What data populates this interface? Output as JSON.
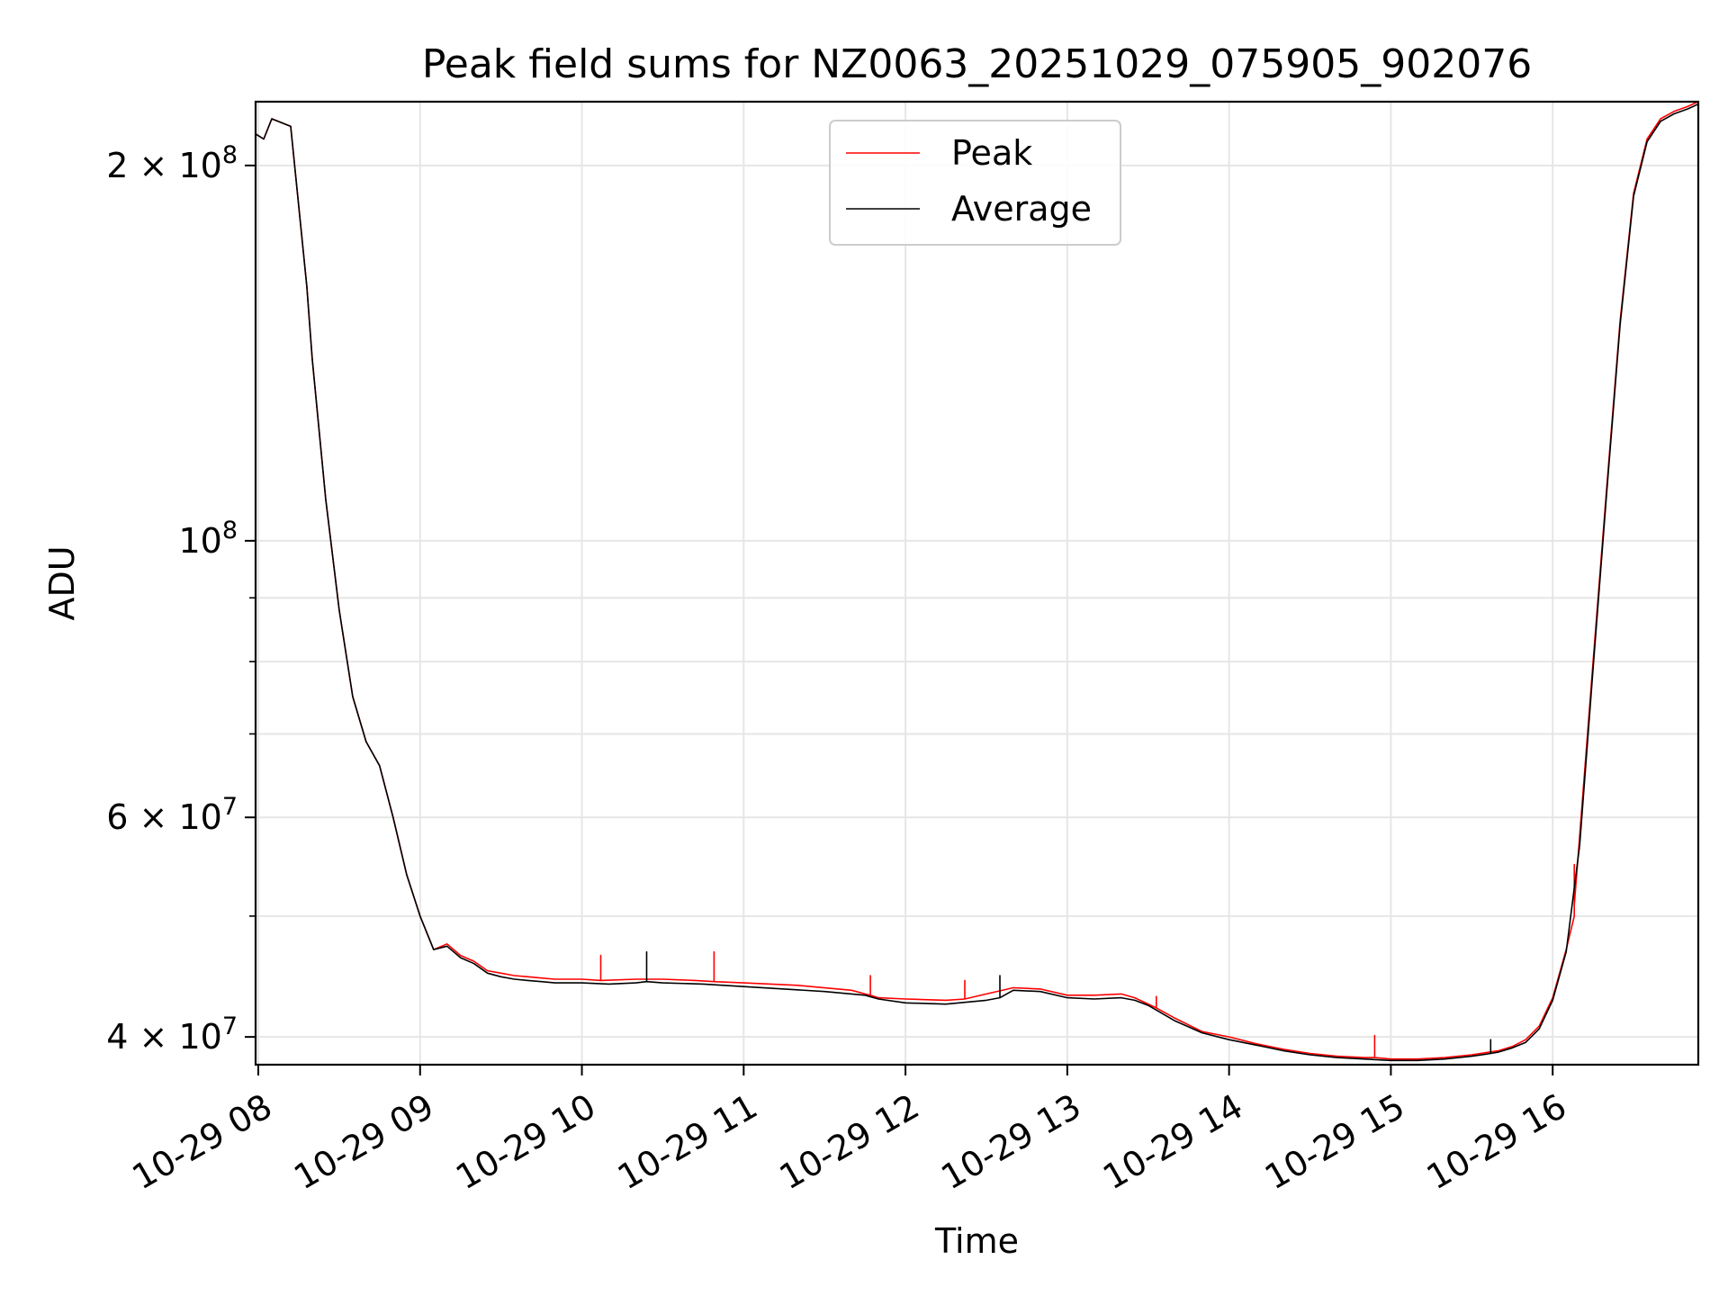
{
  "chart_data": {
    "type": "line",
    "title": "Peak field sums for NZ0063_20251029_075905_902076",
    "xlabel": "Time",
    "ylabel": "ADU",
    "y_scale": "log",
    "grid": true,
    "legend_position": "upper center",
    "xlim": [
      "2025-10-29 07:59",
      "2025-10-29 16:54"
    ],
    "ylim": [
      38000000,
      225000000
    ],
    "x_ticks": [
      {
        "value": "2025-10-29 08:00",
        "label": "10-29 08"
      },
      {
        "value": "2025-10-29 09:00",
        "label": "10-29 09"
      },
      {
        "value": "2025-10-29 10:00",
        "label": "10-29 10"
      },
      {
        "value": "2025-10-29 11:00",
        "label": "10-29 11"
      },
      {
        "value": "2025-10-29 12:00",
        "label": "10-29 12"
      },
      {
        "value": "2025-10-29 13:00",
        "label": "10-29 13"
      },
      {
        "value": "2025-10-29 14:00",
        "label": "10-29 14"
      },
      {
        "value": "2025-10-29 15:00",
        "label": "10-29 15"
      },
      {
        "value": "2025-10-29 16:00",
        "label": "10-29 16"
      }
    ],
    "y_major_ticks": [
      {
        "value": 40000000,
        "mantissa": "4",
        "exponent": "7"
      },
      {
        "value": 60000000,
        "mantissa": "6",
        "exponent": "7"
      },
      {
        "value": 100000000,
        "mantissa": "",
        "exponent": "8"
      },
      {
        "value": 200000000,
        "mantissa": "2",
        "exponent": "8"
      }
    ],
    "y_minor_grid": [
      50000000,
      70000000,
      80000000,
      90000000
    ],
    "series": [
      {
        "name": "Peak",
        "color": "#ff0000",
        "x": [
          "2025-10-29 07:59",
          "2025-10-29 08:02",
          "2025-10-29 08:05",
          "2025-10-29 08:12",
          "2025-10-29 08:18",
          "2025-10-29 08:20",
          "2025-10-29 08:25",
          "2025-10-29 08:30",
          "2025-10-29 08:35",
          "2025-10-29 08:40",
          "2025-10-29 08:45",
          "2025-10-29 08:50",
          "2025-10-29 08:55",
          "2025-10-29 09:00",
          "2025-10-29 09:05",
          "2025-10-29 09:10",
          "2025-10-29 09:15",
          "2025-10-29 09:20",
          "2025-10-29 09:25",
          "2025-10-29 09:30",
          "2025-10-29 09:35",
          "2025-10-29 09:40",
          "2025-10-29 09:45",
          "2025-10-29 09:50",
          "2025-10-29 10:00",
          "2025-10-29 10:07",
          "2025-10-29 10:07",
          "2025-10-29 10:07",
          "2025-10-29 10:20",
          "2025-10-29 10:30",
          "2025-10-29 10:42",
          "2025-10-29 10:49",
          "2025-10-29 10:49",
          "2025-10-29 10:49",
          "2025-10-29 11:00",
          "2025-10-29 11:20",
          "2025-10-29 11:40",
          "2025-10-29 11:45",
          "2025-10-29 11:47",
          "2025-10-29 11:47",
          "2025-10-29 11:47",
          "2025-10-29 11:50",
          "2025-10-29 12:00",
          "2025-10-29 12:15",
          "2025-10-29 12:22",
          "2025-10-29 12:22",
          "2025-10-29 12:22",
          "2025-10-29 12:30",
          "2025-10-29 12:40",
          "2025-10-29 12:50",
          "2025-10-29 13:00",
          "2025-10-29 13:10",
          "2025-10-29 13:20",
          "2025-10-29 13:25",
          "2025-10-29 13:33",
          "2025-10-29 13:33",
          "2025-10-29 13:33",
          "2025-10-29 13:40",
          "2025-10-29 13:50",
          "2025-10-29 14:00",
          "2025-10-29 14:10",
          "2025-10-29 14:20",
          "2025-10-29 14:30",
          "2025-10-29 14:40",
          "2025-10-29 14:50",
          "2025-10-29 14:54",
          "2025-10-29 14:54",
          "2025-10-29 14:54",
          "2025-10-29 15:00",
          "2025-10-29 15:10",
          "2025-10-29 15:20",
          "2025-10-29 15:30",
          "2025-10-29 15:40",
          "2025-10-29 15:45",
          "2025-10-29 15:50",
          "2025-10-29 15:55",
          "2025-10-29 16:00",
          "2025-10-29 16:05",
          "2025-10-29 16:08",
          "2025-10-29 16:08",
          "2025-10-29 16:08",
          "2025-10-29 16:10",
          "2025-10-29 16:15",
          "2025-10-29 16:20",
          "2025-10-29 16:25",
          "2025-10-29 16:30",
          "2025-10-29 16:35",
          "2025-10-29 16:40",
          "2025-10-29 16:45",
          "2025-10-29 16:50",
          "2025-10-29 16:54"
        ],
        "y": [
          212000000,
          210000000,
          218000000,
          215000000,
          160000000,
          140000000,
          108000000,
          88000000,
          75000000,
          69000000,
          66000000,
          60000000,
          54000000,
          50000000,
          47000000,
          47500000,
          46500000,
          46000000,
          45200000,
          45000000,
          44800000,
          44700000,
          44600000,
          44500000,
          44500000,
          44400000,
          46500000,
          44400000,
          44500000,
          44500000,
          44400000,
          44300000,
          46800000,
          44300000,
          44200000,
          44000000,
          43600000,
          43300000,
          43200000,
          44800000,
          43200000,
          43000000,
          42900000,
          42800000,
          42900000,
          44400000,
          42900000,
          43300000,
          43800000,
          43700000,
          43200000,
          43200000,
          43300000,
          43000000,
          42200000,
          43100000,
          42200000,
          41400000,
          40400000,
          40000000,
          39500000,
          39100000,
          38800000,
          38600000,
          38500000,
          38500000,
          40100000,
          38500000,
          38400000,
          38400000,
          38500000,
          38700000,
          39000000,
          39300000,
          39800000,
          40800000,
          43000000,
          47000000,
          50000000,
          55000000,
          51000000,
          58000000,
          80000000,
          110000000,
          150000000,
          190000000,
          210000000,
          218000000,
          221000000,
          223000000,
          225000000
        ]
      },
      {
        "name": "Average",
        "color": "#000000",
        "x": [
          "2025-10-29 07:59",
          "2025-10-29 08:02",
          "2025-10-29 08:05",
          "2025-10-29 08:12",
          "2025-10-29 08:18",
          "2025-10-29 08:20",
          "2025-10-29 08:25",
          "2025-10-29 08:30",
          "2025-10-29 08:35",
          "2025-10-29 08:40",
          "2025-10-29 08:45",
          "2025-10-29 08:50",
          "2025-10-29 08:55",
          "2025-10-29 09:00",
          "2025-10-29 09:05",
          "2025-10-29 09:10",
          "2025-10-29 09:15",
          "2025-10-29 09:20",
          "2025-10-29 09:25",
          "2025-10-29 09:30",
          "2025-10-29 09:35",
          "2025-10-29 09:40",
          "2025-10-29 09:45",
          "2025-10-29 09:50",
          "2025-10-29 10:00",
          "2025-10-29 10:10",
          "2025-10-29 10:20",
          "2025-10-29 10:24",
          "2025-10-29 10:24",
          "2025-10-29 10:24",
          "2025-10-29 10:30",
          "2025-10-29 10:45",
          "2025-10-29 11:00",
          "2025-10-29 11:15",
          "2025-10-29 11:30",
          "2025-10-29 11:45",
          "2025-10-29 11:50",
          "2025-10-29 12:00",
          "2025-10-29 12:15",
          "2025-10-29 12:30",
          "2025-10-29 12:35",
          "2025-10-29 12:35",
          "2025-10-29 12:35",
          "2025-10-29 12:40",
          "2025-10-29 12:50",
          "2025-10-29 13:00",
          "2025-10-29 13:10",
          "2025-10-29 13:20",
          "2025-10-29 13:25",
          "2025-10-29 13:30",
          "2025-10-29 13:40",
          "2025-10-29 13:50",
          "2025-10-29 14:00",
          "2025-10-29 14:10",
          "2025-10-29 14:20",
          "2025-10-29 14:30",
          "2025-10-29 14:40",
          "2025-10-29 14:50",
          "2025-10-29 15:00",
          "2025-10-29 15:10",
          "2025-10-29 15:20",
          "2025-10-29 15:30",
          "2025-10-29 15:37",
          "2025-10-29 15:37",
          "2025-10-29 15:37",
          "2025-10-29 15:40",
          "2025-10-29 15:45",
          "2025-10-29 15:50",
          "2025-10-29 15:55",
          "2025-10-29 16:00",
          "2025-10-29 16:05",
          "2025-10-29 16:10",
          "2025-10-29 16:15",
          "2025-10-29 16:20",
          "2025-10-29 16:25",
          "2025-10-29 16:30",
          "2025-10-29 16:35",
          "2025-10-29 16:40",
          "2025-10-29 16:45",
          "2025-10-29 16:50",
          "2025-10-29 16:54"
        ],
        "y": [
          212000000,
          210000000,
          218000000,
          215000000,
          160000000,
          140000000,
          108000000,
          88000000,
          75000000,
          69000000,
          66000000,
          60000000,
          54000000,
          50000000,
          47000000,
          47300000,
          46300000,
          45800000,
          45000000,
          44700000,
          44500000,
          44400000,
          44300000,
          44200000,
          44200000,
          44100000,
          44200000,
          44300000,
          46800000,
          44300000,
          44200000,
          44100000,
          43900000,
          43700000,
          43500000,
          43200000,
          42900000,
          42600000,
          42500000,
          42800000,
          43000000,
          44800000,
          43000000,
          43600000,
          43500000,
          43000000,
          42900000,
          43000000,
          42800000,
          42400000,
          41200000,
          40300000,
          39800000,
          39400000,
          39000000,
          38700000,
          38500000,
          38400000,
          38300000,
          38300000,
          38400000,
          38600000,
          38800000,
          39800000,
          38800000,
          38900000,
          39200000,
          39600000,
          40600000,
          42800000,
          46800000,
          57000000,
          79000000,
          109000000,
          149000000,
          189000000,
          209000000,
          217000000,
          220000000,
          222000000,
          224000000
        ]
      }
    ]
  }
}
